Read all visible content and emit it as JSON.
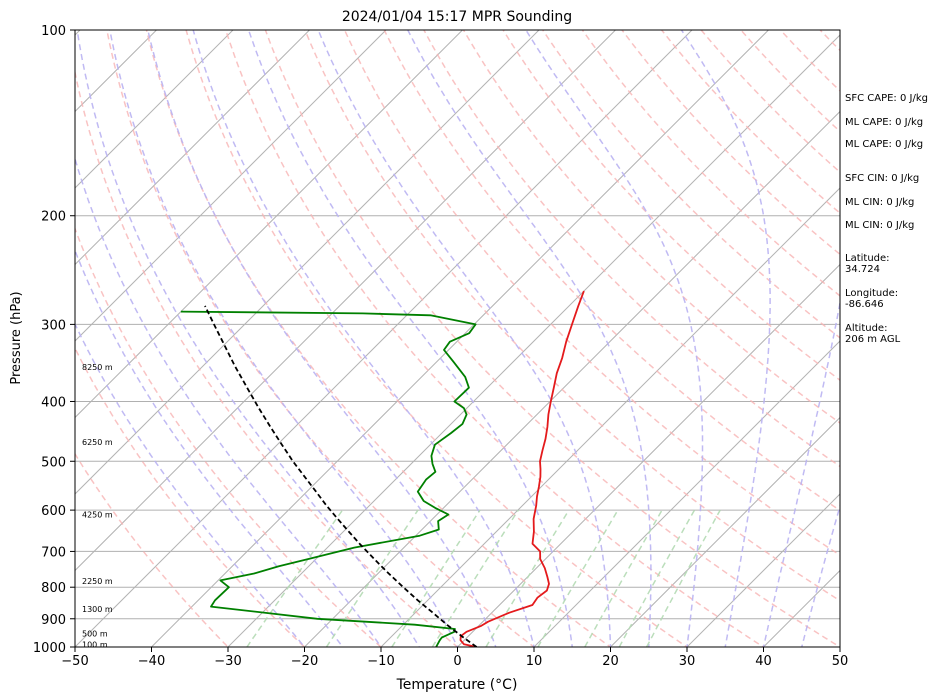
{
  "chart_data": {
    "type": "skew-t log-p sounding",
    "title": "2024/01/04 15:17 MPR Sounding",
    "xlabel": "Temperature (°C)",
    "ylabel": "Pressure (hPa)",
    "xlim": [
      -50,
      50
    ],
    "ylim": [
      1000,
      100
    ],
    "y_scale": "log",
    "x_ticks": [
      -50,
      -40,
      -30,
      -20,
      -10,
      0,
      10,
      20,
      30,
      40,
      50
    ],
    "y_ticks": [
      1000,
      900,
      800,
      700,
      600,
      500,
      400,
      300,
      200,
      100
    ],
    "grid": "horizontal isobars",
    "series": [
      {
        "name": "temperature",
        "color": "#e41a1c",
        "points": [
          [
            1000,
            2.5
          ],
          [
            990,
            0.5
          ],
          [
            975,
            -0.5
          ],
          [
            960,
            -1.0
          ],
          [
            945,
            -0.8
          ],
          [
            925,
            0.3
          ],
          [
            910,
            0.7
          ],
          [
            880,
            2.3
          ],
          [
            855,
            4.3
          ],
          [
            832,
            4.0
          ],
          [
            810,
            4.3
          ],
          [
            790,
            3.7
          ],
          [
            770,
            2.6
          ],
          [
            745,
            1.1
          ],
          [
            720,
            -0.7
          ],
          [
            700,
            -1.7
          ],
          [
            680,
            -3.7
          ],
          [
            650,
            -5.1
          ],
          [
            620,
            -6.8
          ],
          [
            590,
            -8.2
          ],
          [
            570,
            -9.3
          ],
          [
            550,
            -10.3
          ],
          [
            530,
            -11.4
          ],
          [
            515,
            -12.4
          ],
          [
            500,
            -13.5
          ],
          [
            480,
            -14.6
          ],
          [
            460,
            -15.7
          ],
          [
            440,
            -17.0
          ],
          [
            420,
            -18.5
          ],
          [
            400,
            -19.9
          ],
          [
            380,
            -21.3
          ],
          [
            360,
            -22.8
          ],
          [
            340,
            -24.1
          ],
          [
            320,
            -25.7
          ],
          [
            300,
            -27.2
          ],
          [
            280,
            -28.8
          ],
          [
            265,
            -30.0
          ]
        ]
      },
      {
        "name": "dewpoint",
        "color": "#008000",
        "points": [
          [
            1000,
            -2.8
          ],
          [
            975,
            -3.2
          ],
          [
            965,
            -3.3
          ],
          [
            945,
            -2.4
          ],
          [
            935,
            -2.7
          ],
          [
            920,
            -8.5
          ],
          [
            900,
            -22.0
          ],
          [
            860,
            -37.5
          ],
          [
            840,
            -37.8
          ],
          [
            800,
            -37.7
          ],
          [
            780,
            -39.7
          ],
          [
            760,
            -36.2
          ],
          [
            740,
            -33.9
          ],
          [
            720,
            -31.0
          ],
          [
            690,
            -26.5
          ],
          [
            660,
            -19.5
          ],
          [
            645,
            -17.8
          ],
          [
            625,
            -19.0
          ],
          [
            610,
            -18.5
          ],
          [
            595,
            -21.1
          ],
          [
            580,
            -23.5
          ],
          [
            560,
            -25.5
          ],
          [
            535,
            -26.0
          ],
          [
            520,
            -25.8
          ],
          [
            505,
            -27.2
          ],
          [
            490,
            -28.4
          ],
          [
            470,
            -29.4
          ],
          [
            450,
            -28.8
          ],
          [
            435,
            -28.5
          ],
          [
            420,
            -29.2
          ],
          [
            410,
            -30.4
          ],
          [
            400,
            -32.5
          ],
          [
            380,
            -32.4
          ],
          [
            365,
            -34.3
          ],
          [
            345,
            -37.8
          ],
          [
            330,
            -40.6
          ],
          [
            320,
            -40.9
          ],
          [
            310,
            -39.5
          ],
          [
            300,
            -39.8
          ],
          [
            290,
            -46.9
          ],
          [
            288,
            -56.0
          ],
          [
            286,
            -80.0
          ]
        ]
      },
      {
        "name": "parcel",
        "color": "#000000",
        "dashed": true,
        "points": [
          [
            1000,
            2.5
          ],
          [
            960,
            -0.9
          ],
          [
            920,
            -4.3
          ],
          [
            880,
            -7.7
          ],
          [
            840,
            -11.3
          ],
          [
            800,
            -14.9
          ],
          [
            760,
            -18.6
          ],
          [
            720,
            -22.4
          ],
          [
            680,
            -26.3
          ],
          [
            650,
            -29.3
          ],
          [
            620,
            -32.4
          ],
          [
            590,
            -35.6
          ],
          [
            560,
            -38.8
          ],
          [
            530,
            -42.2
          ],
          [
            500,
            -45.8
          ],
          [
            470,
            -49.4
          ],
          [
            440,
            -53.2
          ],
          [
            410,
            -57.2
          ],
          [
            380,
            -61.4
          ],
          [
            350,
            -65.9
          ],
          [
            320,
            -70.6
          ],
          [
            300,
            -74.0
          ],
          [
            280,
            -77.6
          ]
        ]
      }
    ],
    "altitude_markers": [
      {
        "label": "100 m",
        "p": 990
      },
      {
        "label": "500 m",
        "p": 950
      },
      {
        "label": "1300 m",
        "p": 868
      },
      {
        "label": "2250 m",
        "p": 781
      },
      {
        "label": "4250 m",
        "p": 610
      },
      {
        "label": "6250 m",
        "p": 465
      },
      {
        "label": "8250 m",
        "p": 352
      }
    ],
    "background_lines": {
      "isotherms_color": "#b3b3b3",
      "dry_adiabats_color": "#f8b4b4",
      "moist_adiabats_color": "#b9b2f2",
      "mixing_ratio_color": "#b4dab4"
    }
  },
  "stats": [
    {
      "label": "SFC CAPE: 0 J/kg"
    },
    {
      "label": "ML CAPE: 0 J/kg"
    },
    {
      "label": "ML CAPE: 0 J/kg"
    },
    {
      "label": "SFC CIN: 0 J/kg"
    },
    {
      "label": "ML CIN: 0 J/kg"
    },
    {
      "label": "ML CIN: 0 J/kg"
    },
    {
      "label": "Latitude:\n34.724"
    },
    {
      "label": "Longitude:\n-86.646"
    },
    {
      "label": "Altitude:\n206 m AGL"
    }
  ]
}
